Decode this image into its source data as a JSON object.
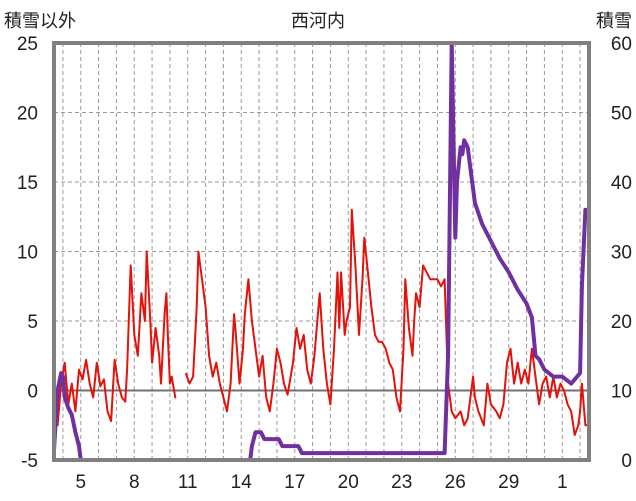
{
  "chart_data": {
    "type": "line",
    "title": "西河内",
    "ylabel_left": "積雪以外",
    "ylabel_right": "積雪",
    "ylim_left": [
      -5,
      25
    ],
    "ylim_right": [
      0,
      60
    ],
    "yticks_left": [
      -5,
      0,
      5,
      10,
      15,
      20,
      25
    ],
    "yticks_right": [
      0,
      10,
      20,
      30,
      40,
      50,
      60
    ],
    "xlim_days": [
      3.5,
      33.5
    ],
    "xticks": [
      {
        "day": 5,
        "label": "5"
      },
      {
        "day": 8,
        "label": "8"
      },
      {
        "day": 11,
        "label": "11"
      },
      {
        "day": 14,
        "label": "14"
      },
      {
        "day": 17,
        "label": "17"
      },
      {
        "day": 20,
        "label": "20"
      },
      {
        "day": 23,
        "label": "23"
      },
      {
        "day": 26,
        "label": "26"
      },
      {
        "day": 29,
        "label": "29"
      },
      {
        "day": 32,
        "label": "1"
      }
    ],
    "grid": true,
    "colors": {
      "temperature": "#e3120b",
      "snow_depth": "#7030a0",
      "frame": "#808080",
      "grid": "#9a9a9a",
      "zero_line": "#707070"
    },
    "series": [
      {
        "key": "temperature",
        "axis": "left",
        "values": [
          [
            3.7,
            -2.5
          ],
          [
            3.9,
            0.5
          ],
          [
            4.1,
            2.0
          ],
          [
            4.3,
            -1.0
          ],
          [
            4.5,
            0.5
          ],
          [
            4.7,
            -1.5
          ],
          [
            4.9,
            1.5
          ],
          [
            5.1,
            0.8
          ],
          [
            5.3,
            2.2
          ],
          [
            5.5,
            0.5
          ],
          [
            5.7,
            -0.5
          ],
          [
            5.9,
            2.0
          ],
          [
            6.1,
            0.3
          ],
          [
            6.3,
            0.8
          ],
          [
            6.5,
            -1.5
          ],
          [
            6.7,
            -2.2
          ],
          [
            6.9,
            2.2
          ],
          [
            7.1,
            0.5
          ],
          [
            7.3,
            -0.5
          ],
          [
            7.5,
            -0.8
          ],
          [
            7.6,
            1.5
          ],
          [
            7.8,
            9.0
          ],
          [
            8.0,
            4.0
          ],
          [
            8.2,
            2.5
          ],
          [
            8.4,
            7.0
          ],
          [
            8.6,
            5.0
          ],
          [
            8.7,
            10.0
          ],
          [
            8.9,
            5.0
          ],
          [
            9.0,
            2.0
          ],
          [
            9.2,
            4.5
          ],
          [
            9.4,
            2.5
          ],
          [
            9.5,
            0.5
          ],
          [
            9.7,
            5.5
          ],
          [
            9.8,
            7.0
          ],
          [
            9.9,
            3.5
          ],
          [
            10.0,
            0.5
          ],
          [
            10.1,
            1.0
          ],
          [
            10.3,
            -0.5
          ],
          [
            10.9,
            1.2
          ],
          [
            11.1,
            0.5
          ],
          [
            11.3,
            1.0
          ],
          [
            11.5,
            6.0
          ],
          [
            11.6,
            10.0
          ],
          [
            11.8,
            8.0
          ],
          [
            12.0,
            6.0
          ],
          [
            12.2,
            2.5
          ],
          [
            12.4,
            1.0
          ],
          [
            12.6,
            2.0
          ],
          [
            12.8,
            0.5
          ],
          [
            13.0,
            -0.5
          ],
          [
            13.2,
            -1.5
          ],
          [
            13.4,
            0.5
          ],
          [
            13.6,
            5.5
          ],
          [
            13.7,
            4.0
          ],
          [
            13.9,
            0.5
          ],
          [
            14.1,
            3.0
          ],
          [
            14.2,
            5.5
          ],
          [
            14.4,
            8.0
          ],
          [
            14.6,
            5.0
          ],
          [
            14.8,
            3.0
          ],
          [
            15.0,
            1.0
          ],
          [
            15.2,
            2.5
          ],
          [
            15.4,
            -0.5
          ],
          [
            15.6,
            -1.5
          ],
          [
            15.8,
            0.5
          ],
          [
            16.0,
            3.0
          ],
          [
            16.2,
            2.0
          ],
          [
            16.4,
            0.5
          ],
          [
            16.6,
            -0.3
          ],
          [
            16.9,
            2.0
          ],
          [
            17.1,
            4.5
          ],
          [
            17.3,
            3.0
          ],
          [
            17.5,
            4.0
          ],
          [
            17.7,
            1.5
          ],
          [
            17.9,
            0.5
          ],
          [
            18.1,
            2.5
          ],
          [
            18.3,
            5.5
          ],
          [
            18.4,
            7.0
          ],
          [
            18.6,
            3.0
          ],
          [
            18.8,
            0.5
          ],
          [
            19.0,
            -1.0
          ],
          [
            19.2,
            3.0
          ],
          [
            19.4,
            8.5
          ],
          [
            19.5,
            4.5
          ],
          [
            19.6,
            8.5
          ],
          [
            19.8,
            4.0
          ],
          [
            19.9,
            5.0
          ],
          [
            20.1,
            6.0
          ],
          [
            20.2,
            13.0
          ],
          [
            20.4,
            9.0
          ],
          [
            20.6,
            4.0
          ],
          [
            20.8,
            8.0
          ],
          [
            20.9,
            11.0
          ],
          [
            21.1,
            8.5
          ],
          [
            21.3,
            6.0
          ],
          [
            21.5,
            4.0
          ],
          [
            21.7,
            3.5
          ],
          [
            21.9,
            3.5
          ],
          [
            22.1,
            3.0
          ],
          [
            22.3,
            2.0
          ],
          [
            22.5,
            1.5
          ],
          [
            22.7,
            -0.5
          ],
          [
            22.9,
            -1.5
          ],
          [
            23.1,
            3.0
          ],
          [
            23.2,
            8.0
          ],
          [
            23.4,
            4.5
          ],
          [
            23.6,
            2.5
          ],
          [
            23.7,
            5.0
          ],
          [
            23.8,
            7.0
          ],
          [
            24.0,
            6.0
          ],
          [
            24.2,
            9.0
          ],
          [
            24.4,
            8.5
          ],
          [
            24.6,
            8.0
          ],
          [
            24.8,
            8.0
          ],
          [
            25.0,
            8.0
          ],
          [
            25.2,
            7.5
          ],
          [
            25.4,
            8.0
          ],
          [
            25.6,
            0.5
          ],
          [
            25.8,
            -1.5
          ],
          [
            26.0,
            -2.0
          ],
          [
            26.3,
            -1.5
          ],
          [
            26.5,
            -2.5
          ],
          [
            26.7,
            -2.0
          ],
          [
            26.8,
            -1.0
          ],
          [
            27.0,
            1.0
          ],
          [
            27.1,
            -0.5
          ],
          [
            27.3,
            -1.5
          ],
          [
            27.6,
            -2.5
          ],
          [
            27.8,
            0.5
          ],
          [
            28.0,
            -1.0
          ],
          [
            28.3,
            -1.5
          ],
          [
            28.5,
            -2.0
          ],
          [
            28.7,
            -1.0
          ],
          [
            28.9,
            2.0
          ],
          [
            29.1,
            3.0
          ],
          [
            29.3,
            0.5
          ],
          [
            29.5,
            2.0
          ],
          [
            29.7,
            0.5
          ],
          [
            29.9,
            1.5
          ],
          [
            30.1,
            0.5
          ],
          [
            30.3,
            3.0
          ],
          [
            30.5,
            1.0
          ],
          [
            30.7,
            -1.0
          ],
          [
            30.9,
            0.5
          ],
          [
            31.1,
            1.0
          ],
          [
            31.3,
            -0.5
          ],
          [
            31.5,
            1.0
          ],
          [
            31.7,
            -0.5
          ],
          [
            31.9,
            0.5
          ],
          [
            32.1,
            0.0
          ],
          [
            32.3,
            -1.0
          ],
          [
            32.5,
            -1.5
          ],
          [
            32.7,
            -3.2
          ],
          [
            32.9,
            -2.5
          ],
          [
            33.0,
            -1.5
          ],
          [
            33.1,
            0.5
          ],
          [
            33.3,
            -2.5
          ],
          [
            33.5,
            -2.5
          ]
        ]
      },
      {
        "key": "snow_depth",
        "axis": "right",
        "values": [
          [
            3.5,
            1.5
          ],
          [
            3.7,
            10.0
          ],
          [
            3.9,
            12.5
          ],
          [
            4.0,
            12.0
          ],
          [
            4.1,
            9.0
          ],
          [
            4.3,
            7.5
          ],
          [
            4.5,
            6.5
          ],
          [
            4.7,
            4.0
          ],
          [
            4.9,
            2.0
          ],
          [
            5.0,
            0.0
          ],
          [
            11.0,
            0.0
          ],
          [
            14.5,
            0.0
          ],
          [
            14.6,
            2.0
          ],
          [
            14.8,
            4.0
          ],
          [
            15.1,
            4.0
          ],
          [
            15.3,
            3.0
          ],
          [
            16.1,
            3.0
          ],
          [
            16.3,
            2.0
          ],
          [
            17.2,
            2.0
          ],
          [
            17.4,
            1.0
          ],
          [
            20.0,
            1.0
          ],
          [
            22.0,
            1.0
          ],
          [
            25.0,
            1.0
          ],
          [
            25.4,
            1.0
          ],
          [
            25.6,
            15.0
          ],
          [
            25.8,
            60.0
          ],
          [
            26.0,
            32.0
          ],
          [
            26.1,
            40.0
          ],
          [
            26.2,
            42.5
          ],
          [
            26.3,
            45.0
          ],
          [
            26.4,
            44.0
          ],
          [
            26.5,
            46.0
          ],
          [
            26.7,
            45.0
          ],
          [
            26.9,
            41.0
          ],
          [
            27.1,
            37.0
          ],
          [
            27.5,
            34.0
          ],
          [
            28.0,
            31.5
          ],
          [
            28.5,
            29.0
          ],
          [
            29.0,
            27.0
          ],
          [
            29.5,
            24.5
          ],
          [
            30.0,
            22.5
          ],
          [
            30.3,
            20.5
          ],
          [
            30.5,
            15.0
          ],
          [
            30.7,
            14.5
          ],
          [
            31.0,
            13.0
          ],
          [
            31.5,
            12.0
          ],
          [
            32.0,
            12.0
          ],
          [
            32.5,
            11.0
          ],
          [
            33.0,
            12.5
          ],
          [
            33.1,
            25.0
          ],
          [
            33.3,
            36.0
          ]
        ]
      }
    ]
  }
}
